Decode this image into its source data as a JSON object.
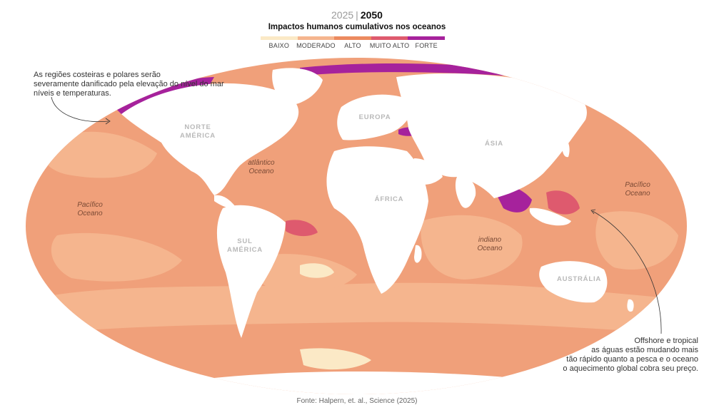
{
  "header": {
    "year_inactive": "2025",
    "separator": "|",
    "year_active": "2050",
    "title": "Impactos humanos cumulativos nos oceanos"
  },
  "legend": {
    "items": [
      {
        "label": "BAIXO",
        "color": "#fbe9c6"
      },
      {
        "label": "MODERADO",
        "color": "#f5b58e"
      },
      {
        "label": "ALTO",
        "color": "#ec8a5f"
      },
      {
        "label": "MUITO ALTO",
        "color": "#de5a6e"
      },
      {
        "label": "FORTE",
        "color": "#a6229c"
      }
    ]
  },
  "map": {
    "ocean_color": "#f0a07a",
    "land_color": "#ffffff",
    "continents": {
      "north_america": [
        "NORTE",
        "AMÉRICA"
      ],
      "south_america": [
        "SUL",
        "AMÉRICA"
      ],
      "europe": "EUROPA",
      "africa": "ÁFRICA",
      "asia": "ÁSIA",
      "australia": "AUSTRÁLIA"
    },
    "oceans": {
      "atlantic": [
        "atlântico",
        "Oceano"
      ],
      "pacific_west": [
        "Pacífico",
        "Oceano"
      ],
      "pacific_east": [
        "Pacífico",
        "Oceano"
      ],
      "indian": [
        "indiano",
        "Oceano"
      ]
    }
  },
  "annotations": {
    "left": [
      "As regiões costeiras e polares serão",
      "severamente danificado pela elevação do nível do mar",
      "níveis e temperaturas."
    ],
    "right": [
      "Offshore e tropical",
      "as águas estão mudando mais",
      "tão rápido quanto a pesca e o oceano",
      "o aquecimento global cobra seu preço."
    ]
  },
  "source": "Fonte: Halpern, et. al., Science (2025)"
}
